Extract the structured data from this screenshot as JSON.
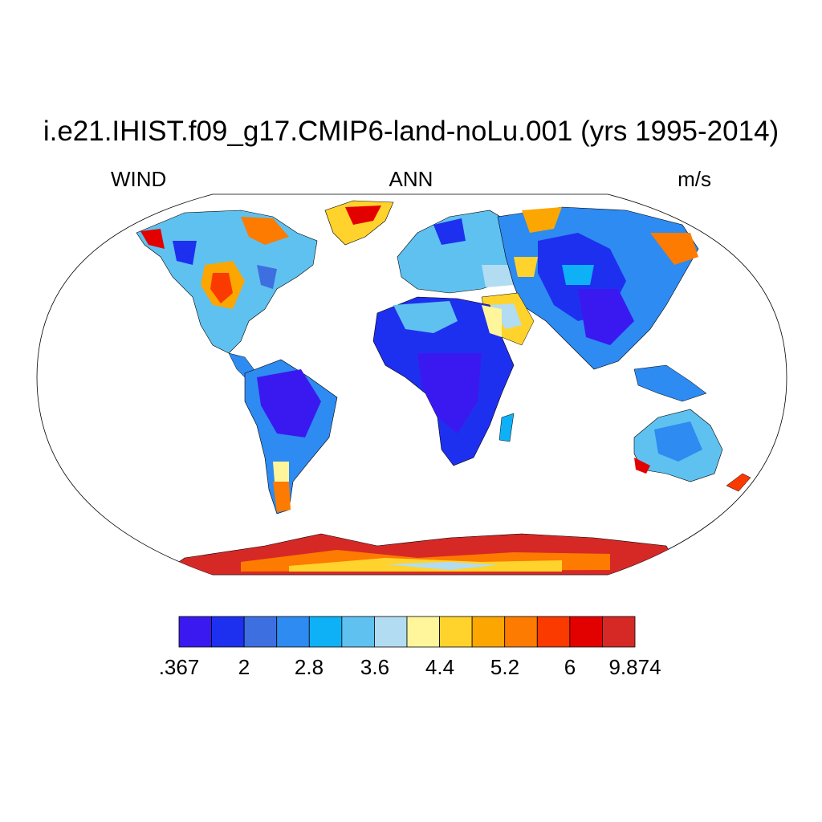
{
  "title": "i.e21.IHIST.f09_g17.CMIP6-land-noLu.001 (yrs 1995-2014)",
  "left_string": "WIND",
  "center_string": "ANN",
  "right_string": "m/s",
  "projection": "Robinson",
  "colorbar": {
    "colors": [
      "#3a19f0",
      "#1e30ef",
      "#3e6fe0",
      "#2d8bf2",
      "#0fb1f6",
      "#5fc1ef",
      "#b2dcf2",
      "#fff59a",
      "#ffd32b",
      "#fca602",
      "#fc7b00",
      "#fb3a00",
      "#e30100",
      "#d62926"
    ],
    "labels": [
      ".367",
      "2",
      "2.8",
      "3.6",
      "4.4",
      "5.2",
      "6",
      "9.874"
    ],
    "boundaries": [
      0.367,
      1.6,
      2,
      2.4,
      2.8,
      3.2,
      3.6,
      4,
      4.4,
      4.8,
      5.2,
      5.6,
      6,
      7.5,
      9.874
    ],
    "units": "m/s"
  }
}
